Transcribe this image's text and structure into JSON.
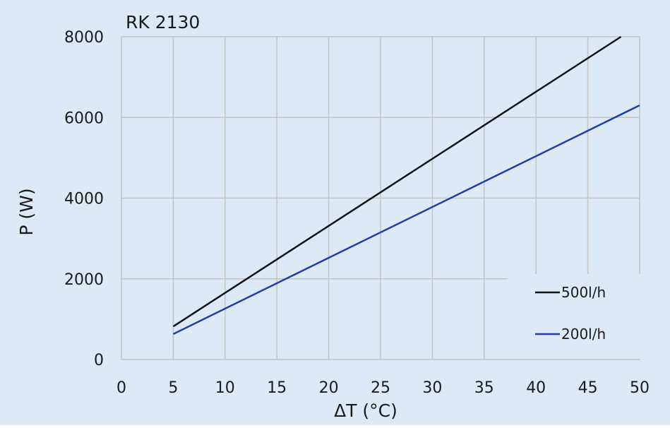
{
  "chart_data": {
    "type": "line",
    "title": "RK 2130",
    "xlabel": "ΔT (°C)",
    "ylabel": "P (W)",
    "xlim": [
      0,
      50
    ],
    "ylim": [
      0,
      8000
    ],
    "x_ticks": [
      0,
      5,
      10,
      15,
      20,
      25,
      30,
      35,
      40,
      45,
      50
    ],
    "y_ticks": [
      0,
      2000,
      4000,
      6000,
      8000
    ],
    "x_tick_labels": [
      "0",
      "5",
      "10",
      "15",
      "20",
      "25",
      "30",
      "35",
      "40",
      "45",
      "50"
    ],
    "y_tick_labels": [
      "0",
      "2000",
      "4000",
      "6000",
      "8000"
    ],
    "grid": true,
    "legend_position": "bottom-right",
    "background_color": "#dde9f5",
    "grid_color": "#c4c4c4",
    "series": [
      {
        "name": "500l/h",
        "color": "#111111",
        "x": [
          5,
          48.2
        ],
        "y": [
          820,
          8000
        ]
      },
      {
        "name": "200l/h",
        "color": "#1f3fa8",
        "x": [
          5,
          50
        ],
        "y": [
          630,
          6300
        ]
      }
    ]
  }
}
